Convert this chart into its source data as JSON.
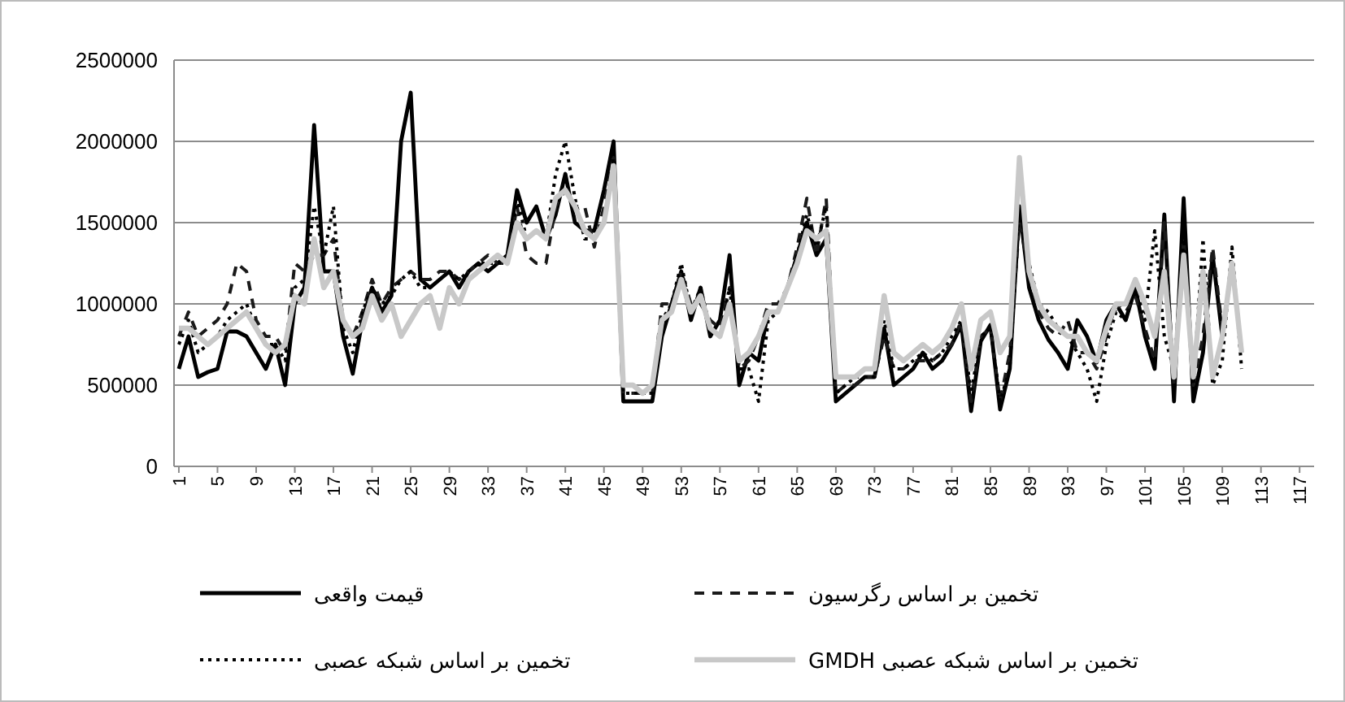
{
  "chart_data": {
    "type": "line",
    "categories": [
      "1",
      null,
      null,
      null,
      "5",
      null,
      null,
      null,
      "9",
      null,
      null,
      null,
      "13",
      null,
      null,
      null,
      "17",
      null,
      null,
      null,
      "21",
      null,
      null,
      null,
      "25",
      null,
      null,
      null,
      "29",
      null,
      null,
      null,
      "33",
      null,
      null,
      null,
      "37",
      null,
      null,
      null,
      "41",
      null,
      null,
      null,
      "45",
      null,
      null,
      null,
      "49",
      null,
      null,
      null,
      "53",
      null,
      null,
      null,
      "57",
      null,
      null,
      null,
      "61",
      null,
      null,
      null,
      "65",
      null,
      null,
      null,
      "69",
      null,
      null,
      null,
      "73",
      null,
      null,
      null,
      "77",
      null,
      null,
      null,
      "81",
      null,
      null,
      null,
      "85",
      null,
      null,
      null,
      "89",
      null,
      null,
      null,
      "93",
      null,
      null,
      null,
      "97",
      null,
      null,
      null,
      "101",
      null,
      null,
      null,
      "105",
      null,
      null,
      null,
      "109",
      null,
      null,
      null,
      "113",
      null,
      null,
      null,
      "117",
      null
    ],
    "series": [
      {
        "name": "قیمت واقعی",
        "color": "#000000",
        "line_style": "solid",
        "values": [
          600000,
          800000,
          550000,
          580000,
          600000,
          830000,
          830000,
          800000,
          700000,
          600000,
          750000,
          500000,
          1000000,
          1100000,
          2100000,
          1200000,
          1200000,
          800000,
          570000,
          900000,
          1100000,
          950000,
          1050000,
          2000000,
          2300000,
          1150000,
          1100000,
          1150000,
          1200000,
          1100000,
          1200000,
          1250000,
          1200000,
          1250000,
          1300000,
          1700000,
          1500000,
          1600000,
          1400000,
          1550000,
          1800000,
          1500000,
          1450000,
          1450000,
          1700000,
          2000000,
          400000,
          400000,
          400000,
          400000,
          800000,
          1000000,
          1200000,
          900000,
          1100000,
          800000,
          900000,
          1300000,
          500000,
          700000,
          650000,
          950000,
          950000,
          1100000,
          1300000,
          1500000,
          1300000,
          1400000,
          400000,
          450000,
          500000,
          550000,
          550000,
          850000,
          500000,
          550000,
          600000,
          700000,
          600000,
          650000,
          750000,
          870000,
          340000,
          770000,
          870000,
          350000,
          600000,
          1600000,
          1100000,
          900000,
          780000,
          700000,
          600000,
          900000,
          800000,
          640000,
          900000,
          1000000,
          900000,
          1100000,
          800000,
          600000,
          1550000,
          400000,
          1650000,
          400000,
          700000,
          1300000,
          800000,
          null,
          null,
          null,
          null,
          null,
          null,
          null,
          null,
          null
        ]
      },
      {
        "name": "تخمین بر اساس رگرسیون",
        "color": "#1a1a1a",
        "line_style": "dashed",
        "values": [
          800000,
          950000,
          800000,
          850000,
          900000,
          1000000,
          1250000,
          1200000,
          900000,
          800000,
          800000,
          700000,
          1250000,
          1200000,
          1300000,
          1300000,
          1400000,
          900000,
          800000,
          950000,
          1150000,
          1000000,
          1100000,
          1150000,
          1200000,
          1150000,
          1150000,
          1200000,
          1200000,
          1150000,
          1200000,
          1250000,
          1300000,
          1250000,
          1250000,
          1600000,
          1300000,
          1250000,
          1250000,
          1600000,
          1700000,
          1600000,
          1600000,
          1350000,
          1600000,
          1900000,
          450000,
          450000,
          450000,
          450000,
          1000000,
          1000000,
          1200000,
          1000000,
          1000000,
          900000,
          850000,
          1100000,
          600000,
          650000,
          800000,
          1000000,
          1000000,
          1100000,
          1350000,
          1650000,
          1300000,
          1650000,
          450000,
          500000,
          500000,
          550000,
          550000,
          800000,
          600000,
          600000,
          650000,
          650000,
          650000,
          700000,
          750000,
          900000,
          400000,
          800000,
          850000,
          400000,
          700000,
          1500000,
          1200000,
          950000,
          850000,
          800000,
          900000,
          700000,
          700000,
          600000,
          800000,
          1000000,
          950000,
          1050000,
          850000,
          650000,
          1500000,
          500000,
          1400000,
          500000,
          800000,
          1350000,
          850000,
          null,
          null,
          null,
          null,
          null,
          null,
          null,
          null,
          null
        ]
      },
      {
        "name": "تخمین بر اساس شبکه عصبی",
        "color": "#000000",
        "line_style": "dotted",
        "values": [
          750000,
          900000,
          700000,
          750000,
          800000,
          900000,
          950000,
          1000000,
          850000,
          750000,
          750000,
          650000,
          1100000,
          1150000,
          1600000,
          1300000,
          1600000,
          850000,
          700000,
          950000,
          1100000,
          1000000,
          1050000,
          1150000,
          1200000,
          1100000,
          1100000,
          1150000,
          1200000,
          1150000,
          1200000,
          1250000,
          1250000,
          1250000,
          1250000,
          1650000,
          1400000,
          1450000,
          1400000,
          1800000,
          2000000,
          1650000,
          1400000,
          1400000,
          1500000,
          1900000,
          450000,
          450000,
          450000,
          450000,
          900000,
          1000000,
          1250000,
          950000,
          1100000,
          850000,
          800000,
          1100000,
          600000,
          600000,
          400000,
          900000,
          950000,
          1100000,
          1300000,
          1550000,
          1350000,
          1600000,
          450000,
          500000,
          550000,
          550000,
          550000,
          900000,
          600000,
          600000,
          650000,
          700000,
          650000,
          700000,
          800000,
          900000,
          450000,
          800000,
          850000,
          400000,
          600000,
          1600000,
          1250000,
          1000000,
          950000,
          850000,
          800000,
          700000,
          600000,
          400000,
          750000,
          950000,
          900000,
          1100000,
          900000,
          1450000,
          800000,
          600000,
          1400000,
          500000,
          1400000,
          500000,
          650000,
          1350000,
          600000,
          null,
          null,
          null,
          null,
          null,
          null,
          null
        ]
      },
      {
        "name": "تخمین بر اساس شبکه عصبی GMDH",
        "color": "#c8c8c8",
        "line_style": "solid",
        "values": [
          850000,
          850000,
          800000,
          750000,
          800000,
          850000,
          900000,
          950000,
          850000,
          750000,
          700000,
          750000,
          1050000,
          1000000,
          1400000,
          1100000,
          1200000,
          900000,
          800000,
          850000,
          1050000,
          900000,
          1000000,
          800000,
          900000,
          1000000,
          1050000,
          850000,
          1100000,
          1000000,
          1150000,
          1200000,
          1250000,
          1300000,
          1250000,
          1500000,
          1400000,
          1450000,
          1400000,
          1650000,
          1700000,
          1600000,
          1450000,
          1400000,
          1500000,
          1850000,
          500000,
          500000,
          450000,
          500000,
          900000,
          950000,
          1150000,
          950000,
          1050000,
          850000,
          800000,
          1000000,
          650000,
          700000,
          800000,
          950000,
          950000,
          1100000,
          1250000,
          1450000,
          1400000,
          1450000,
          550000,
          550000,
          550000,
          600000,
          600000,
          1050000,
          700000,
          650000,
          700000,
          750000,
          700000,
          750000,
          850000,
          1000000,
          600000,
          900000,
          950000,
          700000,
          800000,
          1900000,
          1200000,
          1000000,
          900000,
          850000,
          800000,
          800000,
          700000,
          650000,
          850000,
          1000000,
          1000000,
          1150000,
          1000000,
          800000,
          1200000,
          550000,
          1300000,
          550000,
          1200000,
          550000,
          800000,
          1250000,
          700000,
          null,
          null,
          null,
          null,
          null,
          null,
          null
        ]
      }
    ],
    "ylim": [
      0,
      2500000
    ],
    "yticks": [
      0,
      500000,
      1000000,
      1500000,
      2000000,
      2500000
    ],
    "grid": "y",
    "legend": "bottom"
  }
}
